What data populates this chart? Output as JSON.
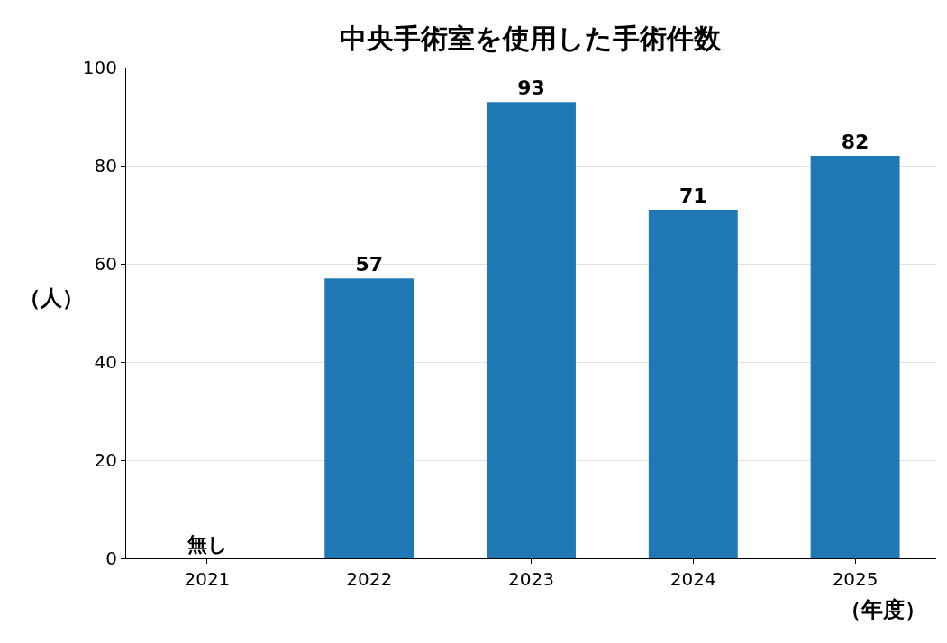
{
  "chart_data": {
    "type": "bar",
    "title": "中央手術室を使用した手術件数",
    "xlabel": "（年度）",
    "ylabel": "（人）",
    "categories": [
      "2021",
      "2022",
      "2023",
      "2024",
      "2025"
    ],
    "values": [
      0,
      57,
      93,
      71,
      82
    ],
    "value_labels": [
      "無し",
      "57",
      "93",
      "71",
      "82"
    ],
    "color": "#1f77b4",
    "ylim": [
      0,
      100
    ],
    "yticks": [
      0,
      20,
      40,
      60,
      80,
      100
    ],
    "grid": "y",
    "legend": false
  }
}
